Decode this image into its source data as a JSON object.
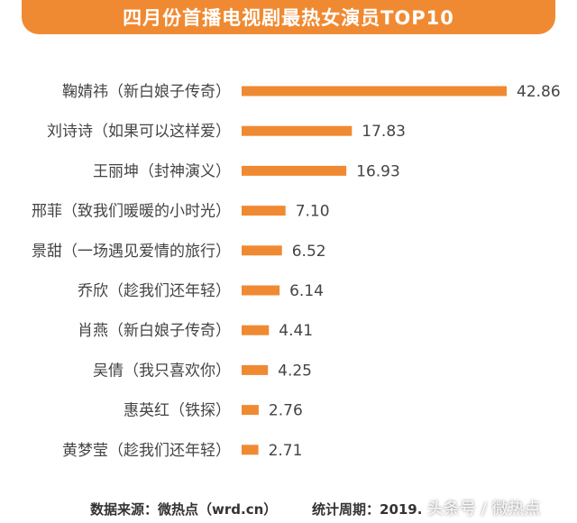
{
  "title": "四月份首播电视剧最热女演员TOP10",
  "chart_data": {
    "type": "bar",
    "orientation": "horizontal",
    "title": "四月份首播电视剧最热女演员TOP10",
    "categories": [
      "鞠婧祎（新白娘子传奇）",
      "刘诗诗（如果可以这样爱）",
      "王丽坤（封神演义）",
      "邢菲（致我们暖暖的小时光）",
      "景甜（一场遇见爱情的旅行）",
      "乔欣（趁我们还年轻）",
      "肖燕（新白娘子传奇）",
      "吴倩（我只喜欢你）",
      "惠英红（铁探）",
      "黄梦莹（趁我们还年轻）"
    ],
    "values": [
      42.86,
      17.83,
      16.93,
      7.1,
      6.52,
      6.14,
      4.41,
      4.25,
      2.76,
      2.71
    ],
    "value_labels": [
      "42.86",
      "17.83",
      "16.93",
      "7.10",
      "6.52",
      "6.14",
      "4.41",
      "4.25",
      "2.76",
      "2.71"
    ],
    "bar_color": "#f08a32",
    "xlabel": "",
    "ylabel": ""
  },
  "footer": {
    "source": "数据来源：微热点（wrd.cn）",
    "period": "统计周期：2019.",
    "watermark": "头条号 / 微热点"
  },
  "colors": {
    "accent": "#f08a32",
    "text": "#444444"
  }
}
